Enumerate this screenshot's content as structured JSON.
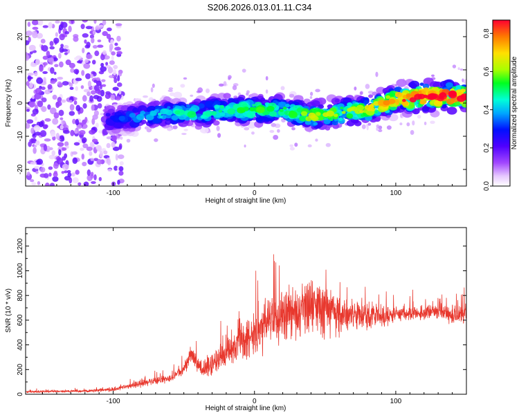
{
  "title": "S206.2026.013.01.11.C34",
  "chart_data": [
    {
      "type": "heatmap",
      "xlabel": "Height of straight line (km)",
      "ylabel": "Frequency (Hz)",
      "xlim": [
        -162,
        150
      ],
      "ylim": [
        -25,
        25
      ],
      "x_ticks": [
        -100,
        0,
        100
      ],
      "x_tick_labels": [
        "-100",
        "0",
        "100"
      ],
      "y_ticks": [
        -20,
        -10,
        0,
        10,
        20
      ],
      "y_tick_labels": [
        "-20",
        "-10",
        "0",
        "10",
        "20"
      ],
      "colorbar": {
        "label": "Normalized spectral amplitude",
        "range": [
          0.0,
          0.87
        ],
        "ticks": [
          0.0,
          0.2,
          0.4,
          0.6,
          0.8
        ],
        "tick_labels": [
          "0.0",
          "0.2",
          "0.4",
          "0.6",
          "0.8"
        ]
      },
      "ridge": {
        "x": [
          -100,
          -80,
          -60,
          -40,
          -20,
          0,
          20,
          40,
          60,
          80,
          100,
          120,
          140
        ],
        "freq_hz": [
          -5,
          -4,
          -3,
          -3,
          -2,
          -2,
          -2,
          -4,
          -3,
          -2,
          1,
          2,
          2
        ],
        "amplitude": [
          0.25,
          0.35,
          0.4,
          0.45,
          0.45,
          0.5,
          0.45,
          0.55,
          0.55,
          0.6,
          0.7,
          0.85,
          0.8
        ]
      },
      "noise_region": {
        "x_range": [
          -162,
          -100
        ],
        "freq_range": [
          -25,
          25
        ],
        "amplitude": 0.15
      }
    },
    {
      "type": "line",
      "xlabel": "Height of straight line (km)",
      "ylabel": "SNR (10 * v/v)",
      "xlim": [
        -162,
        150
      ],
      "ylim": [
        0,
        1350
      ],
      "x_ticks": [
        -100,
        0,
        100
      ],
      "x_tick_labels": [
        "-100",
        "0",
        "100"
      ],
      "y_ticks": [
        0,
        200,
        400,
        600,
        800,
        1000,
        1200
      ],
      "y_tick_labels": [
        "0",
        "200",
        "400",
        "600",
        "800",
        "1000",
        "1200"
      ],
      "color": "#e8382e",
      "series": [
        {
          "name": "SNR",
          "envelope_x": [
            -162,
            -120,
            -100,
            -90,
            -80,
            -70,
            -60,
            -50,
            -45,
            -40,
            -35,
            -30,
            -20,
            -10,
            0,
            10,
            20,
            30,
            40,
            50,
            60,
            70,
            80,
            90,
            100,
            110,
            120,
            130,
            140,
            150
          ],
          "envelope_mean": [
            20,
            25,
            40,
            70,
            85,
            110,
            130,
            200,
            320,
            250,
            180,
            260,
            330,
            430,
            500,
            580,
            640,
            650,
            720,
            690,
            650,
            640,
            640,
            620,
            650,
            650,
            660,
            670,
            650,
            650
          ],
          "envelope_spread": [
            12,
            15,
            25,
            35,
            40,
            45,
            50,
            70,
            110,
            90,
            90,
            130,
            190,
            230,
            260,
            300,
            340,
            360,
            380,
            300,
            230,
            200,
            160,
            130,
            110,
            90,
            80,
            80,
            120,
            120
          ]
        }
      ]
    }
  ]
}
